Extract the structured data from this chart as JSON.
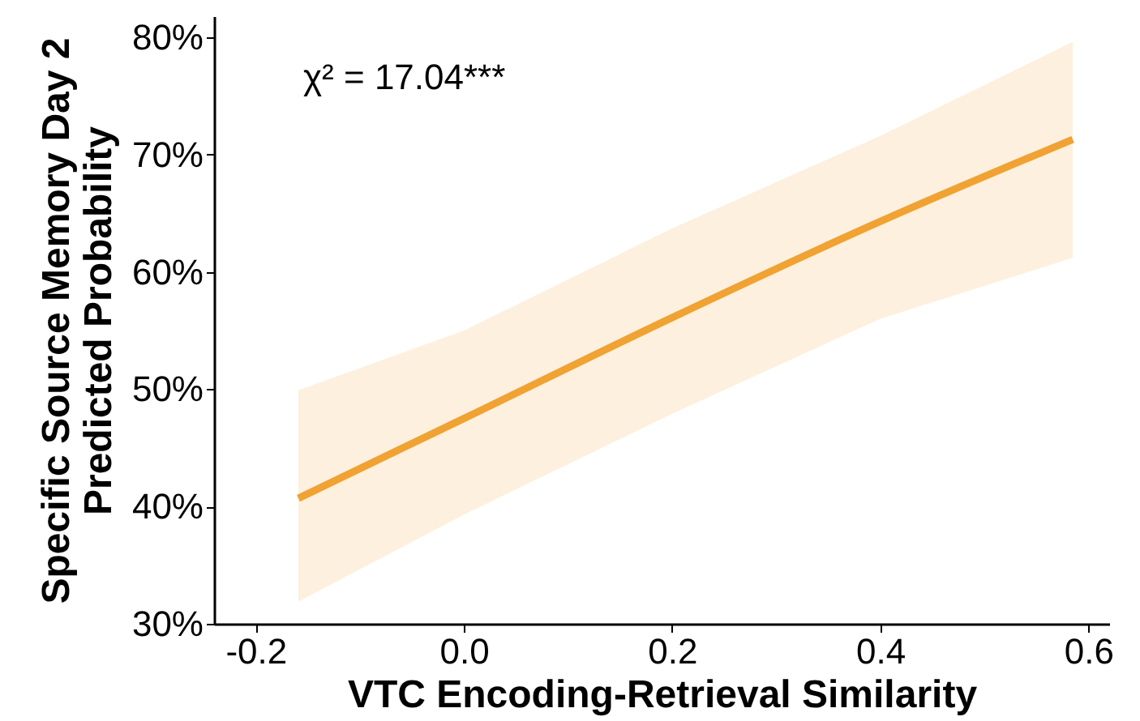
{
  "chart_data": {
    "type": "line",
    "xlabel": "VTC Encoding-Retrieval Similarity",
    "ylabel": "Specific Source Memory Day 2\nPredicted Probability",
    "annotations": [
      "χ² = 17.04***"
    ],
    "series": [
      {
        "color": "#f0a232",
        "x": [
          -0.159,
          0,
          0.2,
          0.4,
          0.585
        ],
        "values": [
          40.7,
          47.5,
          56.1,
          64.3,
          71.3
        ],
        "lower": [
          31.9,
          39.3,
          47.9,
          56.0,
          61.2
        ],
        "upper": [
          49.9,
          55.0,
          63.7,
          71.6,
          79.6
        ]
      }
    ],
    "xlim": [
      -0.24,
      0.62
    ],
    "xticks": [
      {
        "value": -0.2,
        "label": "-0.2"
      },
      {
        "value": 0,
        "label": "0.0"
      },
      {
        "value": 0.2,
        "label": "0.2"
      },
      {
        "value": 0.4,
        "label": "0.4"
      },
      {
        "value": 0.6,
        "label": "0.6"
      }
    ],
    "ylim": [
      30,
      81.8
    ],
    "yticks": [
      {
        "value": 30,
        "label": "30%"
      },
      {
        "value": 40,
        "label": "40%"
      },
      {
        "value": 50,
        "label": "50%"
      },
      {
        "value": 60,
        "label": "60%"
      },
      {
        "value": 70,
        "label": "70%"
      },
      {
        "value": 80,
        "label": "80%"
      }
    ],
    "grid": false,
    "line_style": "solid",
    "marker": "none"
  }
}
